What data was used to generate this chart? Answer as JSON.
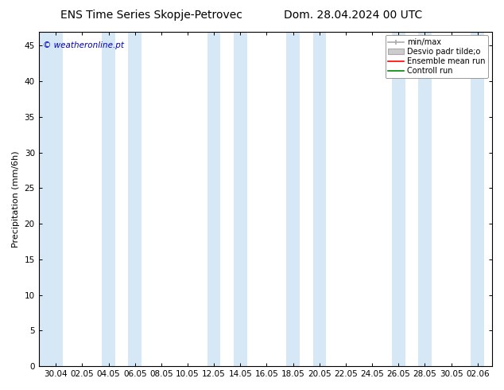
{
  "title_left": "ENS Time Series Skopje-Petrovec",
  "title_right": "Dom. 28.04.2024 00 UTC",
  "ylabel": "Precipitation (mm/6h)",
  "watermark": "© weatheronline.pt",
  "ylim": [
    0,
    47
  ],
  "ytick_vals": [
    0,
    5,
    10,
    15,
    20,
    25,
    30,
    35,
    40,
    45
  ],
  "xtick_labels": [
    "30.04",
    "02.05",
    "04.05",
    "06.05",
    "08.05",
    "10.05",
    "12.05",
    "14.05",
    "16.05",
    "18.05",
    "20.05",
    "22.05",
    "24.05",
    "26.05",
    "28.05",
    "30.05",
    "02.06"
  ],
  "n_ticks": 17,
  "band_color": "#d6e8f5",
  "background_color": "#ffffff",
  "legend_label_minmax": "min/max",
  "legend_label_desvio": "Desvio padr tilde;o",
  "legend_label_ensemble": "Ensemble mean run",
  "legend_label_control": "Controll run",
  "legend_color_minmax": "#aaaaaa",
  "legend_color_desvio": "#cccccc",
  "legend_color_ensemble": "#ff0000",
  "legend_color_control": "#008800",
  "title_fontsize": 10,
  "axis_fontsize": 8,
  "tick_fontsize": 7.5,
  "legend_fontsize": 7,
  "watermark_color": "#0000bb",
  "watermark_fontsize": 7.5,
  "band_indices": [
    0,
    2,
    6,
    7,
    9,
    10,
    13,
    14,
    16
  ]
}
